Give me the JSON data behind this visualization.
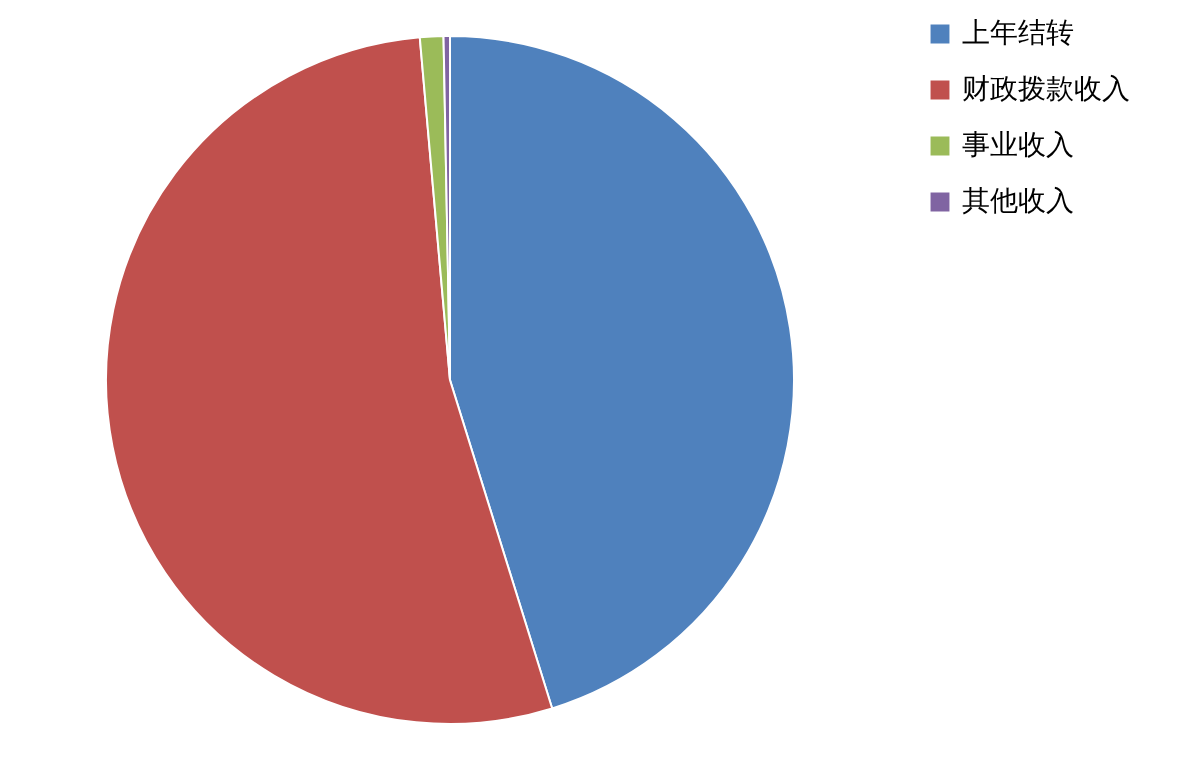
{
  "chart_data": {
    "type": "pie",
    "categories": [
      "上年结转",
      "财政拨款收入",
      "事业收入",
      "其他收入"
    ],
    "values": [
      45.2,
      53.4,
      1.1,
      0.3
    ],
    "colors": [
      "#4f81bd",
      "#c0504d",
      "#9bbb59",
      "#8064a2"
    ],
    "legend": "right"
  }
}
